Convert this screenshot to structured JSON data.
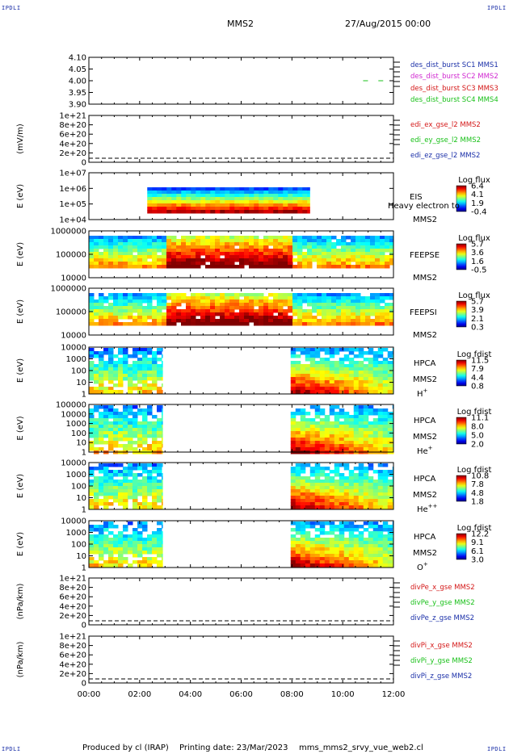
{
  "corner_label": "IPDLI",
  "header": {
    "mission": "MMS2",
    "datetime": "27/Aug/2015 00:00"
  },
  "footer": {
    "produced_by": "Produced by cl (IRAP)",
    "printing_date": "Printing date: 23/Mar/2023",
    "file": "mms_mms2_srvy_vue_web2.cl"
  },
  "colors": {
    "blue": "#1a2fa8",
    "magenta": "#d028d0",
    "red": "#d41818",
    "green": "#18c018"
  },
  "x_axis": {
    "ticks": [
      "00:00",
      "02:00",
      "04:00",
      "06:00",
      "08:00",
      "10:00",
      "12:00"
    ],
    "range_hours": [
      0,
      12
    ]
  },
  "chart_data": [
    {
      "type": "line",
      "panel": "des_dist_burst",
      "ylim": [
        3.9,
        4.1
      ],
      "ytick_labels": [
        "4.10",
        "4.05",
        "4.00",
        "3.95",
        "3.90"
      ],
      "series": [
        {
          "name": "des_dist_burst SC1 MMS1",
          "color": "blue",
          "points": []
        },
        {
          "name": "des_dist_burst SC2 MMS2",
          "color": "magenta",
          "points": []
        },
        {
          "name": "des_dist_burst SC3 MMS3",
          "color": "red",
          "points": []
        },
        {
          "name": "des_dist_burst SC4 MMS4",
          "color": "green",
          "points": [
            [
              10.9,
              4.0
            ],
            [
              11.5,
              4.0
            ]
          ]
        }
      ]
    },
    {
      "type": "line",
      "panel": "edi",
      "ylabel": "(mV/m)",
      "ytick_labels": [
        "1e+21",
        "8e+20",
        "6e+20",
        "4e+20",
        "2e+20",
        "0"
      ],
      "series": [
        {
          "name": "edi_ex_gse_l2 MMS2",
          "color": "red"
        },
        {
          "name": "edi_ey_gse_l2 MMS2",
          "color": "green"
        },
        {
          "name": "edi_ez_gse_l2 MMS2",
          "color": "blue"
        }
      ],
      "zero_line": true
    },
    {
      "type": "heatmap",
      "panel": "eis",
      "ylabel": "E (eV)",
      "ytick_labels": [
        "1e+07",
        "1e+06",
        "1e+05",
        "1e+04"
      ],
      "right_labels": [
        "EIS",
        "MMS2"
      ],
      "colorbar_title": "Log flux",
      "colorbar_ticks": [
        "6.4",
        "4.1",
        "1.9",
        "-0.4"
      ],
      "overlap_text": "Heavy electron to",
      "time_range": [
        2.3,
        8.7
      ]
    },
    {
      "type": "heatmap",
      "panel": "feepse",
      "ylabel": "E (eV)",
      "ytick_labels": [
        "1000000",
        "100000",
        "10000"
      ],
      "right_labels": [
        "FEEPSE",
        "MMS2"
      ],
      "colorbar_title": "Log flux",
      "colorbar_ticks": [
        "5.7",
        "3.6",
        "1.6",
        "-0.5"
      ],
      "time_range": [
        0,
        12
      ]
    },
    {
      "type": "heatmap",
      "panel": "feepsi",
      "ylabel": "E (eV)",
      "ytick_labels": [
        "1000000",
        "100000",
        "10000"
      ],
      "right_labels": [
        "FEEPSI",
        "MMS2"
      ],
      "colorbar_title": "Log flux",
      "colorbar_ticks": [
        "5.7",
        "3.9",
        "2.1",
        "0.3"
      ],
      "time_range": [
        0,
        12
      ]
    },
    {
      "type": "heatmap",
      "panel": "hpca_h",
      "ylabel": "E (eV)",
      "ytick_labels": [
        "10000",
        "1000",
        "100",
        "10",
        "1"
      ],
      "right_labels": [
        "HPCA",
        "MMS2"
      ],
      "species": "H",
      "species_sup": "+",
      "colorbar_title": "Log fdist",
      "colorbar_ticks": [
        "11.5",
        "7.9",
        "4.4",
        "0.8"
      ],
      "time_ranges": [
        [
          0,
          2.9
        ],
        [
          7.95,
          12
        ]
      ]
    },
    {
      "type": "heatmap",
      "panel": "hpca_he",
      "ylabel": "E (eV)",
      "ytick_labels": [
        "100000",
        "10000",
        "1000",
        "100",
        "10",
        "1"
      ],
      "right_labels": [
        "HPCA",
        "MMS2"
      ],
      "species": "He",
      "species_sup": "+",
      "colorbar_title": "Log fdist",
      "colorbar_ticks": [
        "11.1",
        "8.0",
        "5.0",
        "2.0"
      ],
      "time_ranges": [
        [
          0,
          2.9
        ],
        [
          7.95,
          12
        ]
      ]
    },
    {
      "type": "heatmap",
      "panel": "hpca_hepp",
      "ylabel": "E (eV)",
      "ytick_labels": [
        "10000",
        "1000",
        "100",
        "10",
        "1"
      ],
      "right_labels": [
        "HPCA",
        "MMS2"
      ],
      "species": "He",
      "species_sup": "++",
      "colorbar_title": "Log fdist",
      "colorbar_ticks": [
        "10.8",
        "7.8",
        "4.8",
        "1.8"
      ],
      "time_ranges": [
        [
          0,
          2.9
        ],
        [
          7.95,
          12
        ]
      ]
    },
    {
      "type": "heatmap",
      "panel": "hpca_o",
      "ylabel": "E (eV)",
      "ytick_labels": [
        "10000",
        "1000",
        "100",
        "10",
        "1"
      ],
      "right_labels": [
        "HPCA",
        "MMS2"
      ],
      "species": "O",
      "species_sup": "+",
      "colorbar_title": "Log fdist",
      "colorbar_ticks": [
        "12.2",
        "9.1",
        "6.1",
        "3.0"
      ],
      "time_ranges": [
        [
          0,
          2.9
        ],
        [
          7.95,
          12
        ]
      ]
    },
    {
      "type": "line",
      "panel": "divpe",
      "ylabel": "(nPa/km)",
      "ytick_labels": [
        "1e+21",
        "8e+20",
        "6e+20",
        "4e+20",
        "2e+20",
        "0"
      ],
      "series": [
        {
          "name": "divPe_x_gse MMS2",
          "color": "red"
        },
        {
          "name": "divPe_y_gse MMS2",
          "color": "green"
        },
        {
          "name": "divPe_z_gse MMS2",
          "color": "blue"
        }
      ],
      "zero_line": true
    },
    {
      "type": "line",
      "panel": "divpi",
      "ylabel": "(nPa/km)",
      "ytick_labels": [
        "1e+21",
        "8e+20",
        "6e+20",
        "4e+20",
        "2e+20",
        "0"
      ],
      "series": [
        {
          "name": "divPi_x_gse MMS2",
          "color": "red"
        },
        {
          "name": "divPi_y_gse MMS2",
          "color": "green"
        },
        {
          "name": "divPi_z_gse MMS2",
          "color": "blue"
        }
      ],
      "zero_line": true
    }
  ]
}
